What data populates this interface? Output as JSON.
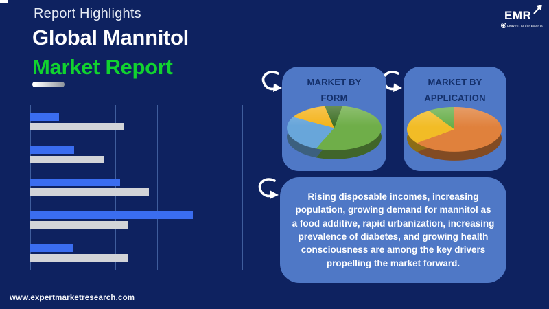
{
  "page": {
    "background": "#0e2260",
    "accent_green": "#11d32f",
    "card_blue": "#4f78c6",
    "gridline_color": "#3f5d9c"
  },
  "header": {
    "eyebrow": "Report Highlights",
    "title_line1": "Global Mannitol",
    "title_line2": "Market Report"
  },
  "logo": {
    "text": "EMR",
    "tagline": "Leave It to the Experts"
  },
  "chart_data": [
    {
      "type": "bar",
      "orientation": "horizontal",
      "title": "",
      "categories": [
        "",
        "",
        "",
        "",
        ""
      ],
      "series": [
        {
          "name": "series-blue",
          "color": "#3a6df0",
          "values": [
            0.68,
            1.04,
            2.12,
            3.84,
            1.0
          ]
        },
        {
          "name": "series-gray",
          "color": "#d2d4d8",
          "values": [
            2.2,
            1.73,
            2.8,
            2.32,
            2.32
          ]
        }
      ],
      "xlim": [
        0,
        5
      ],
      "gridline_count": 6,
      "legend": false,
      "axis_labels": false
    },
    {
      "type": "pie",
      "title": "MARKET BY FORM",
      "title_lines": [
        "MARKET BY",
        "FORM"
      ],
      "start_angle_deg": 10,
      "slices": [
        {
          "value": 53.5,
          "color": "#6fae49"
        },
        {
          "value": 27.0,
          "color": "#68a6da"
        },
        {
          "value": 13.5,
          "color": "#f4b41e"
        },
        {
          "value": 6.0,
          "color": "#3e6f26"
        }
      ]
    },
    {
      "type": "pie",
      "title": "MARKET BY APPLICATION",
      "title_lines": [
        "MARKET BY",
        "APPLICATION"
      ],
      "start_angle_deg": 0,
      "slices": [
        {
          "value": 64.5,
          "color": "#e0813c"
        },
        {
          "value": 26.5,
          "color": "#f2bc26"
        },
        {
          "value": 9.0,
          "color": "#67ae49"
        }
      ]
    }
  ],
  "callout": {
    "text": "Rising disposable incomes, increasing population, growing demand for mannitol as a food additive, rapid urbanization, increasing prevalence of diabetes, and growing health consciousness are among the key drivers propelling the market forward."
  },
  "footer": {
    "url": "www.expertmarketresearch.com"
  }
}
